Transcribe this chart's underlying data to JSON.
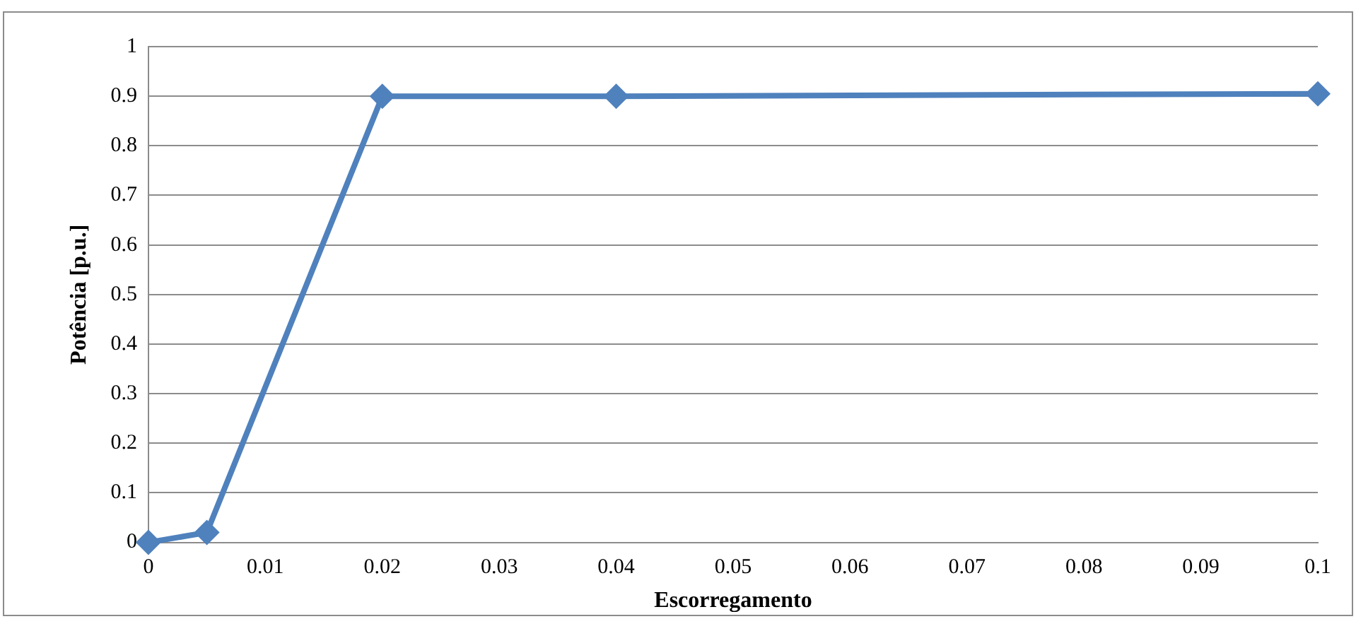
{
  "chart_data": {
    "type": "line",
    "xlabel": "Escorregamento",
    "ylabel": "Potência [p.u.]",
    "x": [
      0,
      0.005,
      0.02,
      0.04,
      0.1
    ],
    "series": [
      {
        "color": "#4f81bd",
        "values": [
          0,
          0.02,
          0.9,
          0.9,
          0.905
        ]
      }
    ],
    "xlim": [
      0,
      0.1
    ],
    "xticks": [
      0,
      0.01,
      0.02,
      0.03,
      0.04,
      0.05,
      0.06,
      0.07,
      0.08,
      0.09,
      0.1
    ],
    "ylim": [
      0,
      1
    ],
    "yticks": [
      0,
      0.1,
      0.2,
      0.3,
      0.4,
      0.5,
      0.6,
      0.7,
      0.8,
      0.9,
      1
    ],
    "grid": "y",
    "legend": false,
    "marker": "diamond",
    "line_style": "solid"
  }
}
